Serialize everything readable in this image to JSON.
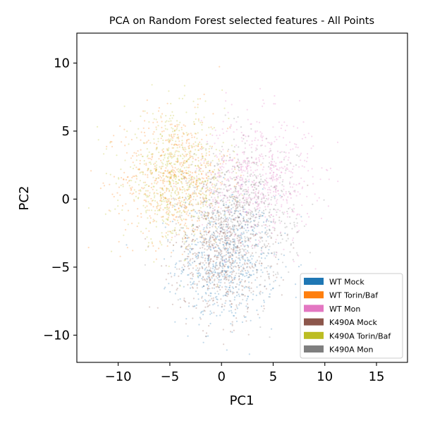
{
  "chart_data": {
    "type": "scatter",
    "title": "PCA on Random Forest selected features - All Points",
    "xlabel": "PC1",
    "ylabel": "PC2",
    "xlim": [
      -14,
      18
    ],
    "ylim": [
      -12,
      12.2
    ],
    "x_ticks": [
      -10,
      -5,
      0,
      5,
      10,
      15
    ],
    "y_ticks": [
      -10,
      -5,
      0,
      5,
      10
    ],
    "x_tick_labels": [
      "−10",
      "−5",
      "0",
      "5",
      "10",
      "15"
    ],
    "y_tick_labels": [
      "−10",
      "−5",
      "0",
      "5",
      "10"
    ],
    "grid": false,
    "legend_position": "lower-right",
    "series": [
      {
        "name": "WT Mock",
        "color": "#1f77b4",
        "center": [
          0.5,
          -4.5
        ],
        "spread": [
          2.4,
          2.4
        ]
      },
      {
        "name": "WT Torin/Baf",
        "color": "#ff7f0e",
        "center": [
          -4.5,
          1.5
        ],
        "spread": [
          2.6,
          2.4
        ]
      },
      {
        "name": "WT Mon",
        "color": "#e377c2",
        "center": [
          3.5,
          1.5
        ],
        "spread": [
          2.7,
          2.3
        ]
      },
      {
        "name": "K490A Mock",
        "color": "#8c564b",
        "center": [
          0.0,
          -4.0
        ],
        "spread": [
          2.3,
          2.3
        ]
      },
      {
        "name": "K490A Torin/Baf",
        "color": "#bcbd22",
        "center": [
          -4.5,
          1.5
        ],
        "spread": [
          2.5,
          2.3
        ]
      },
      {
        "name": "K490A Mon",
        "color": "#7f7f7f",
        "center": [
          2.0,
          -1.0
        ],
        "spread": [
          2.6,
          2.6
        ]
      }
    ]
  }
}
